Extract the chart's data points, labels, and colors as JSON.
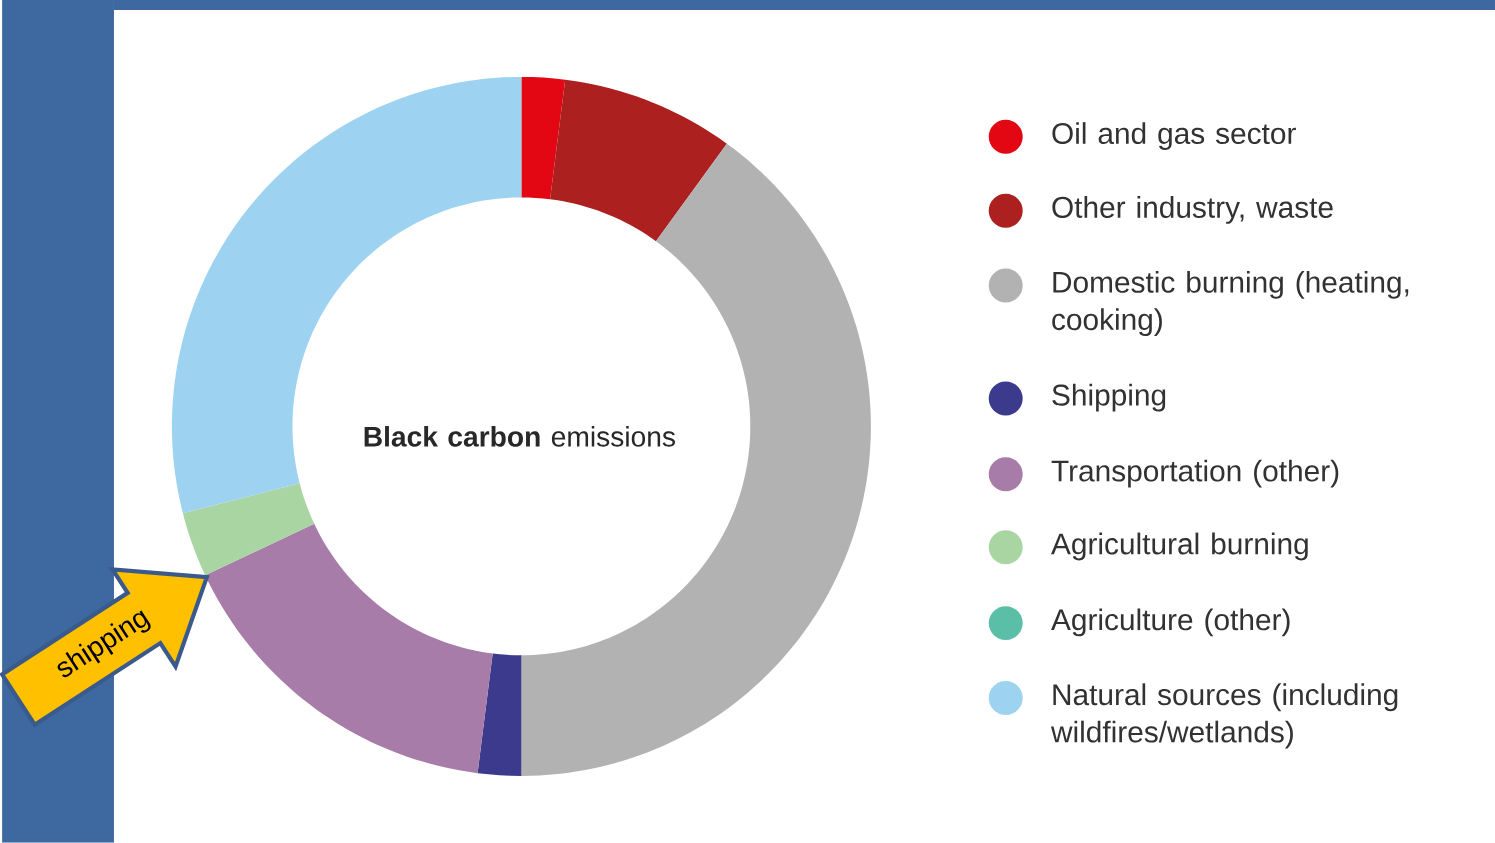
{
  "chart_data": {
    "type": "donut",
    "title": "**Black carbon** emissions",
    "categories": [
      "Oil and gas sector",
      "Other industry, waste",
      "Domestic burning (heating, cooking)",
      "Shipping",
      "Transportation (other)",
      "Agricultural burning",
      "Agriculture (other)",
      "Natural sources (including wildfires/wetlands)"
    ],
    "values": [
      2,
      8,
      40,
      2,
      16,
      3,
      0,
      29
    ],
    "colors": [
      "#e30613",
      "#ad2020",
      "#b2b2b2",
      "#3b3a8c",
      "#a87ca8",
      "#a8d5a2",
      "#5bbfa8",
      "#9dd3f0"
    ],
    "legend": "right",
    "annotations": [
      "shipping"
    ]
  }
}
